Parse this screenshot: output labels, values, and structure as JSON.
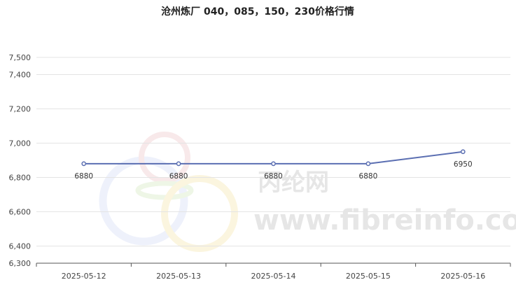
{
  "chart_data": {
    "type": "line",
    "title": "沧州炼厂 040，085，150，230价格行情",
    "categories": [
      "2025-05-12",
      "2025-05-13",
      "2025-05-14",
      "2025-05-15",
      "2025-05-16"
    ],
    "series": [
      {
        "values": [
          6880,
          6880,
          6880,
          6880,
          6950
        ],
        "data_labels": [
          "6880",
          "6880",
          "6880",
          "6880",
          "6950"
        ]
      }
    ],
    "ylim": [
      6300,
      7500
    ],
    "y_ticks": [
      6300,
      6400,
      6600,
      6800,
      7000,
      7200,
      7400,
      7500
    ],
    "y_tick_labels": [
      "6,300",
      "6,400",
      "6,600",
      "6,800",
      "7,000",
      "7,200",
      "7,400",
      "7,500"
    ],
    "grid": true,
    "colors": {
      "line": "#5b6fb2",
      "grid": "#e4e4e4",
      "axis": "#555555"
    }
  },
  "watermark": {
    "brand": "丙纶网",
    "site": "www.fibreinfo.com",
    "colors": [
      "#eef1fb",
      "#f8e9ea",
      "#eef6e6",
      "#fbf5df"
    ]
  }
}
